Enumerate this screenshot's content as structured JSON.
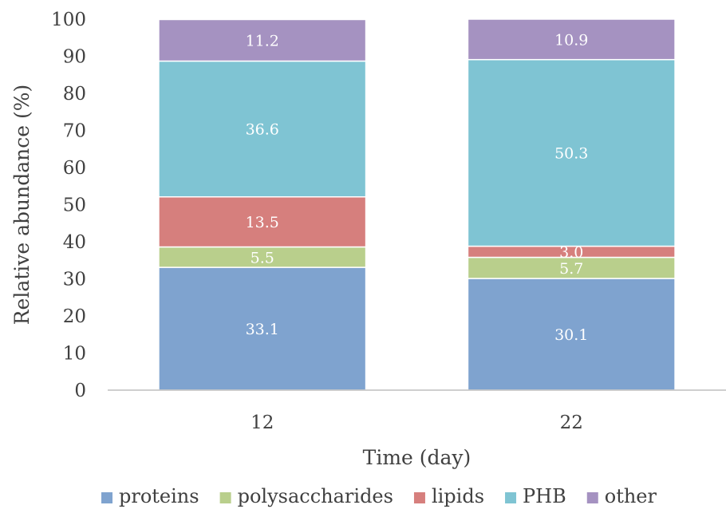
{
  "chart_data": {
    "type": "bar",
    "stacked": true,
    "categories": [
      "12",
      "22"
    ],
    "series": [
      {
        "name": "proteins",
        "color": "#7fa3cf",
        "values": [
          33.1,
          30.1
        ]
      },
      {
        "name": "polysaccharides",
        "color": "#b9cf8c",
        "values": [
          5.5,
          5.7
        ]
      },
      {
        "name": "lipids",
        "color": "#d67f7d",
        "values": [
          13.5,
          3.0
        ]
      },
      {
        "name": "PHB",
        "color": "#7fc4d3",
        "values": [
          36.6,
          50.3
        ]
      },
      {
        "name": "other",
        "color": "#a592c1",
        "values": [
          11.2,
          10.9
        ]
      }
    ],
    "xlabel": "Time (day)",
    "ylabel": "Relative abundance (%)",
    "ylim": [
      0,
      100
    ],
    "yticks": [
      "0",
      "10",
      "20",
      "30",
      "40",
      "50",
      "60",
      "70",
      "80",
      "90",
      "100"
    ],
    "grid": false,
    "legend_position": "bottom"
  }
}
